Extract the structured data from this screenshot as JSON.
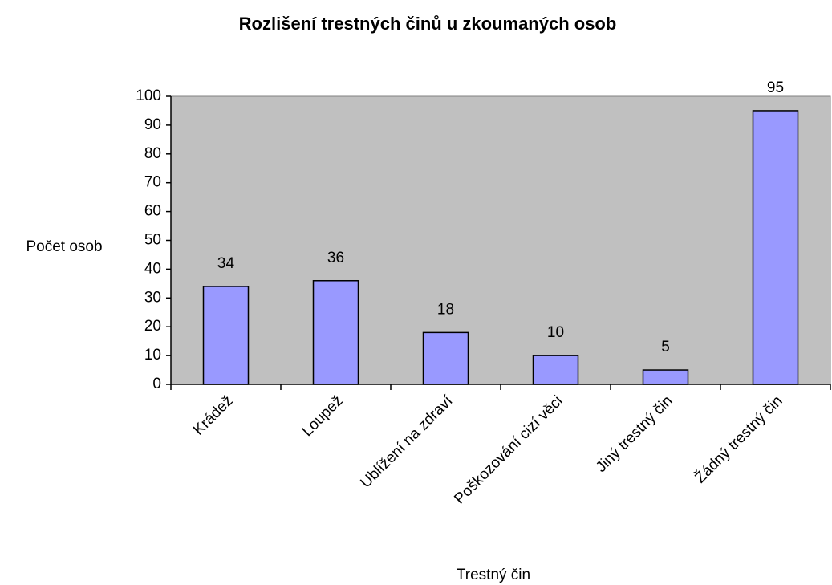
{
  "chart_data": {
    "type": "bar",
    "title": "Rozlišení trestných činů u zkoumaných osob",
    "x_label": "Trestný čin",
    "y_label": "Počet osob",
    "categories": [
      "Krádež",
      "Loupež",
      "Ublížení na zdraví",
      "Poškozování cizí věci",
      "Jiný trestný čin",
      "Žádný trestný čin"
    ],
    "values": [
      34,
      36,
      18,
      10,
      5,
      95
    ],
    "color": "#9999ff",
    "background": "#c0c0c0",
    "ylim": [
      0,
      100
    ],
    "yticks": [
      0,
      10,
      20,
      30,
      40,
      50,
      60,
      70,
      80,
      90,
      100
    ]
  }
}
